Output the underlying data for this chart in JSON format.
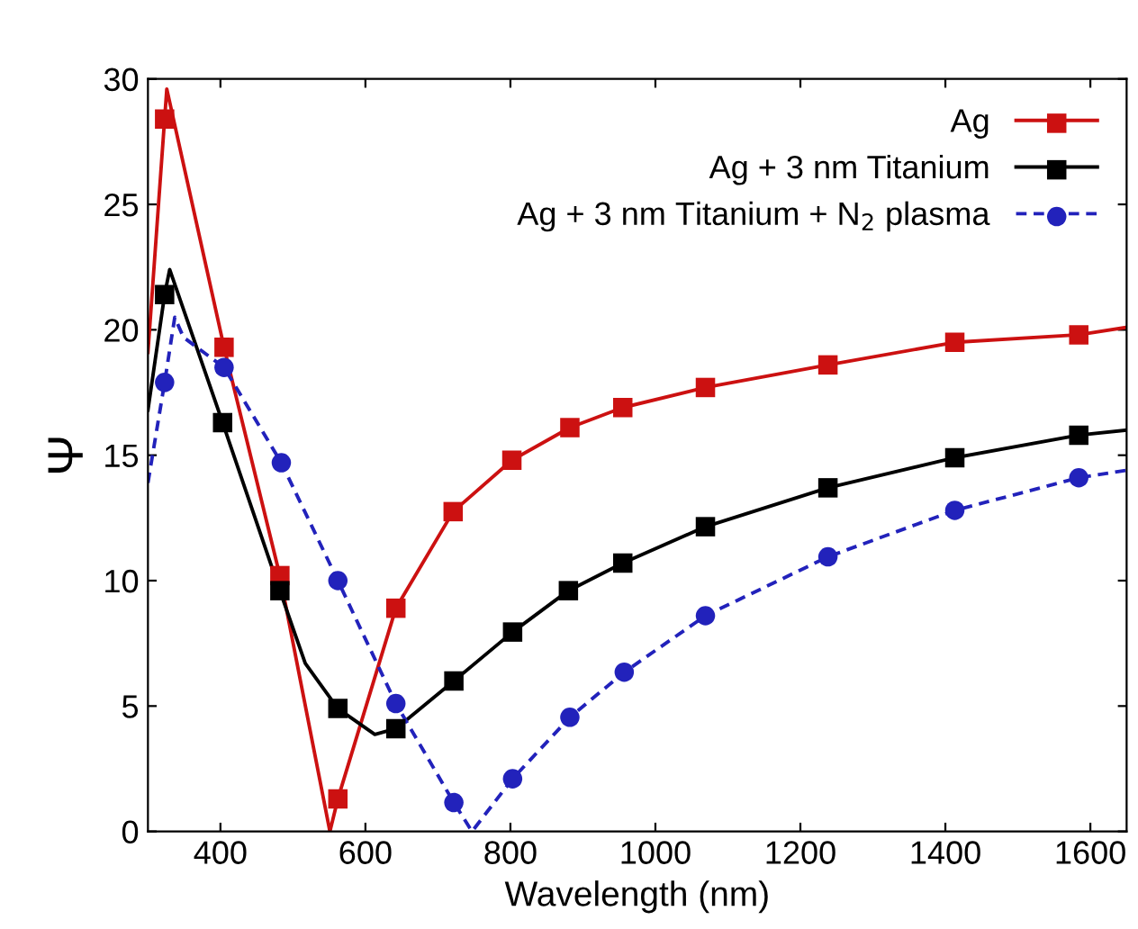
{
  "chart_data": {
    "type": "line",
    "xlabel": "Wavelength (nm)",
    "ylabel": "Ψ",
    "xlim": [
      300,
      1650
    ],
    "ylim": [
      0,
      30
    ],
    "xticks": [
      400,
      600,
      800,
      1000,
      1200,
      1400,
      1600
    ],
    "yticks": [
      0,
      5,
      10,
      15,
      20,
      25,
      30
    ],
    "grid": false,
    "legend": "top right",
    "series": [
      {
        "name": "Ag",
        "color": "#cc1111",
        "line_style": "solid",
        "marker": "none",
        "x": [
          300,
          323,
          326,
          405,
          482,
          551,
          562,
          642,
          721,
          802,
          882,
          955,
          1069,
          1238,
          1413,
          1584,
          1650
        ],
        "values": [
          19.1,
          28.4,
          29.6,
          19.3,
          10.2,
          0,
          1.3,
          8.9,
          12.75,
          14.8,
          16.1,
          16.9,
          17.7,
          18.6,
          19.5,
          19.8,
          20.1
        ]
      },
      {
        "type": "scatter",
        "color": "#cc1111",
        "marker": "square",
        "x": [
          323,
          405,
          482,
          562,
          642,
          721,
          802,
          882,
          955,
          1069,
          1238,
          1413,
          1584
        ],
        "values": [
          28.4,
          19.3,
          10.2,
          1.3,
          8.9,
          12.75,
          14.8,
          16.1,
          16.9,
          17.7,
          18.6,
          19.5,
          19.8
        ]
      },
      {
        "name": "Ag + 3 nm Titanium",
        "color": "#000000",
        "line_style": "solid",
        "marker": "none",
        "x": [
          300,
          323,
          330,
          403,
          482,
          517,
          562,
          613,
          642,
          722,
          803,
          880,
          955,
          1069,
          1238,
          1413,
          1584,
          1650
        ],
        "values": [
          16.8,
          21.4,
          22.4,
          16.3,
          9.6,
          6.7,
          4.9,
          3.87,
          4.1,
          6.0,
          7.95,
          9.6,
          10.7,
          12.15,
          13.7,
          14.9,
          15.8,
          16.0
        ]
      },
      {
        "type": "scatter",
        "color": "#000000",
        "marker": "square",
        "x": [
          323,
          403,
          482,
          562,
          642,
          722,
          803,
          880,
          955,
          1069,
          1238,
          1413,
          1584
        ],
        "values": [
          21.4,
          16.3,
          9.6,
          4.9,
          4.1,
          6.0,
          7.95,
          9.6,
          10.7,
          12.15,
          13.7,
          14.9,
          15.8
        ]
      },
      {
        "name": "Ag + 3 nm Titanium + N$_{2}$ plasma",
        "color": "#2222bb",
        "line_style": "dashed",
        "marker": "none",
        "x": [
          300,
          323,
          337,
          349,
          405,
          484,
          562,
          642,
          722,
          747,
          803,
          882,
          957,
          1069,
          1238,
          1413,
          1584,
          1650
        ],
        "values": [
          13.9,
          17.9,
          20.5,
          19.7,
          18.5,
          14.7,
          10.0,
          5.1,
          1.15,
          0,
          2.1,
          4.55,
          6.35,
          8.6,
          10.95,
          12.8,
          14.1,
          14.4
        ]
      },
      {
        "type": "scatter",
        "color": "#2222bb",
        "marker": "circle",
        "x": [
          323,
          405,
          484,
          562,
          642,
          722,
          803,
          882,
          957,
          1069,
          1238,
          1413,
          1584
        ],
        "values": [
          17.9,
          18.5,
          14.7,
          10.0,
          5.1,
          1.15,
          2.1,
          4.55,
          6.35,
          8.6,
          10.95,
          12.8,
          14.1
        ]
      }
    ]
  }
}
